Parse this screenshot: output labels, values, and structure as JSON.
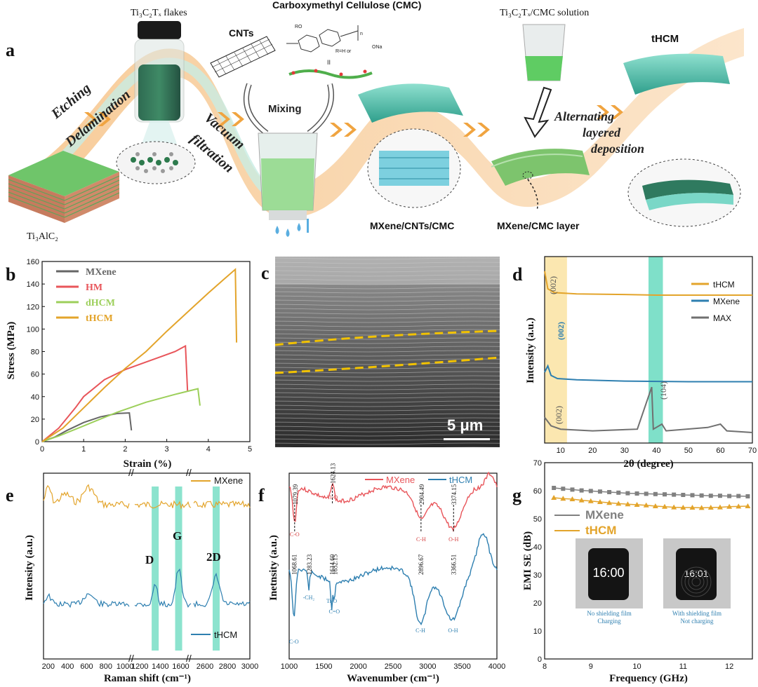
{
  "panel_a": {
    "letter": "a",
    "ti3alc2": "Ti₃AlC₂",
    "flakes": "Ti₃C₂Tₓ flakes",
    "cnts": "CNTs",
    "cmc": "Carboxymethyl Cellulose (CMC)",
    "solution": "Ti₃C₂Tₓ/CMC solution",
    "thcm": "tHCM",
    "etching": "Etching",
    "delamination": "Delamination",
    "mixing": "Mixing",
    "vacuum": "Vacuum",
    "filtration": "filtration",
    "alternating": "Alternating",
    "layered": "layered",
    "deposition": "deposition",
    "mxene_cnts_cmc": "MXene/CNTs/CMC",
    "mxene_cmc_layer": "MXene/CMC layer",
    "cmc_r": "R=H or",
    "cmc_ro": "RO",
    "cmc_na": "ONa",
    "cmc_n": "n",
    "cmc_ii": "II"
  },
  "panel_c": {
    "letter": "c",
    "scale": "5 μm"
  },
  "chart_data": [
    {
      "panel": "b",
      "type": "line",
      "xlabel": "Strain (%)",
      "ylabel": "Stress (MPa)",
      "xlim": [
        0,
        5
      ],
      "ylim": [
        0,
        160
      ],
      "xticks": [
        "0",
        "1",
        "2",
        "3",
        "4",
        "5"
      ],
      "yticks": [
        "0",
        "20",
        "40",
        "60",
        "80",
        "100",
        "120",
        "140",
        "160"
      ],
      "legend_position": "top-left",
      "series": [
        {
          "name": "MXene",
          "color": "#666666",
          "points": [
            [
              0,
              0
            ],
            [
              0.3,
              4
            ],
            [
              0.6,
              10
            ],
            [
              1.0,
              17
            ],
            [
              1.4,
              22
            ],
            [
              1.8,
              25
            ],
            [
              2.1,
              25.5
            ],
            [
              2.15,
              10
            ]
          ]
        },
        {
          "name": "HM",
          "color": "#e8555a",
          "points": [
            [
              0,
              0
            ],
            [
              0.4,
              12
            ],
            [
              0.8,
              30
            ],
            [
              1.0,
              40
            ],
            [
              1.5,
              55
            ],
            [
              2.0,
              64
            ],
            [
              2.6,
              72
            ],
            [
              3.2,
              80
            ],
            [
              3.45,
              85
            ],
            [
              3.5,
              45
            ]
          ]
        },
        {
          "name": "dHCM",
          "color": "#9ccf5a",
          "points": [
            [
              0,
              0
            ],
            [
              0.4,
              5
            ],
            [
              1.0,
              14
            ],
            [
              1.8,
              26
            ],
            [
              2.5,
              35
            ],
            [
              3.2,
              42
            ],
            [
              3.75,
              47
            ],
            [
              3.8,
              32
            ]
          ]
        },
        {
          "name": "tHCM",
          "color": "#e3a42b",
          "points": [
            [
              0,
              0
            ],
            [
              0.5,
              12
            ],
            [
              1.0,
              30
            ],
            [
              1.5,
              48
            ],
            [
              2.0,
              65
            ],
            [
              2.5,
              80
            ],
            [
              3.0,
              98
            ],
            [
              3.5,
              115
            ],
            [
              4.0,
              132
            ],
            [
              4.4,
              145
            ],
            [
              4.65,
              153
            ],
            [
              4.68,
              88
            ]
          ]
        }
      ]
    },
    {
      "panel": "d",
      "type": "line",
      "xlabel": "2θ (degree)",
      "ylabel": "Intensity (a.u.)",
      "xlim": [
        5,
        70
      ],
      "xticks": [
        "10",
        "20",
        "30",
        "40",
        "50",
        "60",
        "70"
      ],
      "legend_position": "top-right",
      "annotations": [
        "(002)",
        "(002)",
        "(002)",
        "(104)"
      ],
      "series": [
        {
          "name": "tHCM",
          "color": "#e3a42b",
          "points": [
            [
              5,
              1.0
            ],
            [
              6,
              0.72
            ],
            [
              8,
              0.66
            ],
            [
              15,
              0.64
            ],
            [
              30,
              0.63
            ],
            [
              40,
              0.62
            ],
            [
              70,
              0.62
            ]
          ]
        },
        {
          "name": "MXene",
          "color": "#2e7fb0",
          "points": [
            [
              5,
              0.45
            ],
            [
              6,
              0.55
            ],
            [
              7,
              0.4
            ],
            [
              9,
              0.35
            ],
            [
              15,
              0.33
            ],
            [
              30,
              0.31
            ],
            [
              50,
              0.3
            ],
            [
              70,
              0.3
            ]
          ]
        },
        {
          "name": "MAX",
          "color": "#707070",
          "points": [
            [
              5,
              0.12
            ],
            [
              7,
              0.07
            ],
            [
              10,
              0.05
            ],
            [
              20,
              0.04
            ],
            [
              34,
              0.05
            ],
            [
              38.5,
              0.3
            ],
            [
              39,
              0.05
            ],
            [
              41.7,
              0.08
            ],
            [
              43,
              0.04
            ],
            [
              56,
              0.06
            ],
            [
              60,
              0.08
            ],
            [
              62,
              0.04
            ],
            [
              70,
              0.03
            ]
          ]
        }
      ]
    },
    {
      "panel": "e",
      "type": "line",
      "xlabel": "Raman shift (cm⁻¹)",
      "ylabel": "Intensity (a.u.)",
      "xticks": [
        "200",
        "400",
        "600",
        "800",
        "1000",
        "1200",
        "1400",
        "1600",
        "2600",
        "2800",
        "3000"
      ],
      "legend_position": "right",
      "annotations": [
        "D",
        "G",
        "2D"
      ],
      "series": [
        {
          "name": "MXene",
          "color": "#e3a42b"
        },
        {
          "name": "tHCM",
          "color": "#2e7fb0"
        }
      ]
    },
    {
      "panel": "f",
      "type": "line",
      "xlabel": "Wavenumber (cm⁻¹)",
      "ylabel": "Inetnsity (a.u.)",
      "xlim": [
        1000,
        4000
      ],
      "xticks": [
        "1000",
        "1500",
        "2000",
        "2500",
        "3000",
        "3500",
        "4000"
      ],
      "legend_position": "top-right",
      "peak_labels_mxene": [
        "1079.39",
        "1624.13",
        "2904.49",
        "3374.15"
      ],
      "peak_labels_thcm": [
        "1068.61",
        "1283.23",
        "1614.60",
        "1652.15",
        "2896.67",
        "3366.51"
      ],
      "bond_labels": [
        "C-O",
        "Ti-O",
        "C-H",
        "O-H",
        "C-O",
        "-CH₂",
        "Ti-O",
        "C=O",
        "C-H",
        "O-H"
      ],
      "series": [
        {
          "name": "MXene",
          "color": "#e8555a"
        },
        {
          "name": "tHCM",
          "color": "#2e7fb0"
        }
      ]
    },
    {
      "panel": "g",
      "type": "line",
      "xlabel": "Frequency (GHz)",
      "ylabel": "EMI SE (dB)",
      "xlim": [
        8,
        12.5
      ],
      "ylim": [
        0,
        70
      ],
      "xticks": [
        "8",
        "9",
        "10",
        "11",
        "12"
      ],
      "yticks": [
        "0",
        "10",
        "20",
        "30",
        "40",
        "50",
        "60",
        "70"
      ],
      "legend_position": "middle-left",
      "series": [
        {
          "name": "MXene",
          "color": "#808080",
          "x": [
            8.2,
            8.4,
            8.6,
            8.8,
            9.0,
            9.2,
            9.4,
            9.6,
            9.8,
            10.0,
            10.2,
            10.4,
            10.6,
            10.8,
            11.0,
            11.2,
            11.4,
            11.6,
            11.8,
            12.0,
            12.2,
            12.4
          ],
          "values": [
            61,
            60.7,
            60.4,
            60.1,
            59.9,
            59.7,
            59.5,
            59.3,
            59.1,
            59.0,
            58.9,
            58.8,
            58.7,
            58.6,
            58.5,
            58.4,
            58.3,
            58.2,
            58.2,
            58.1,
            58.1,
            58.0
          ]
        },
        {
          "name": "tHCM",
          "color": "#e3a42b",
          "x": [
            8.2,
            8.4,
            8.6,
            8.8,
            9.0,
            9.2,
            9.4,
            9.6,
            9.8,
            10.0,
            10.2,
            10.4,
            10.6,
            10.8,
            11.0,
            11.2,
            11.4,
            11.6,
            11.8,
            12.0,
            12.2,
            12.4
          ],
          "values": [
            57.5,
            57.2,
            57,
            56.6,
            56.3,
            56,
            55.7,
            55.4,
            55.2,
            55,
            54.8,
            54.5,
            54.3,
            54.1,
            54,
            54,
            53.9,
            54,
            54.1,
            54.3,
            54.4,
            54.5
          ]
        }
      ],
      "insets": [
        {
          "time": "16\n:00",
          "caption1": "No shielding film",
          "caption2": "Charging"
        },
        {
          "time": "16:01",
          "caption1": "With shielding film",
          "caption2": "Not charging"
        }
      ]
    }
  ]
}
